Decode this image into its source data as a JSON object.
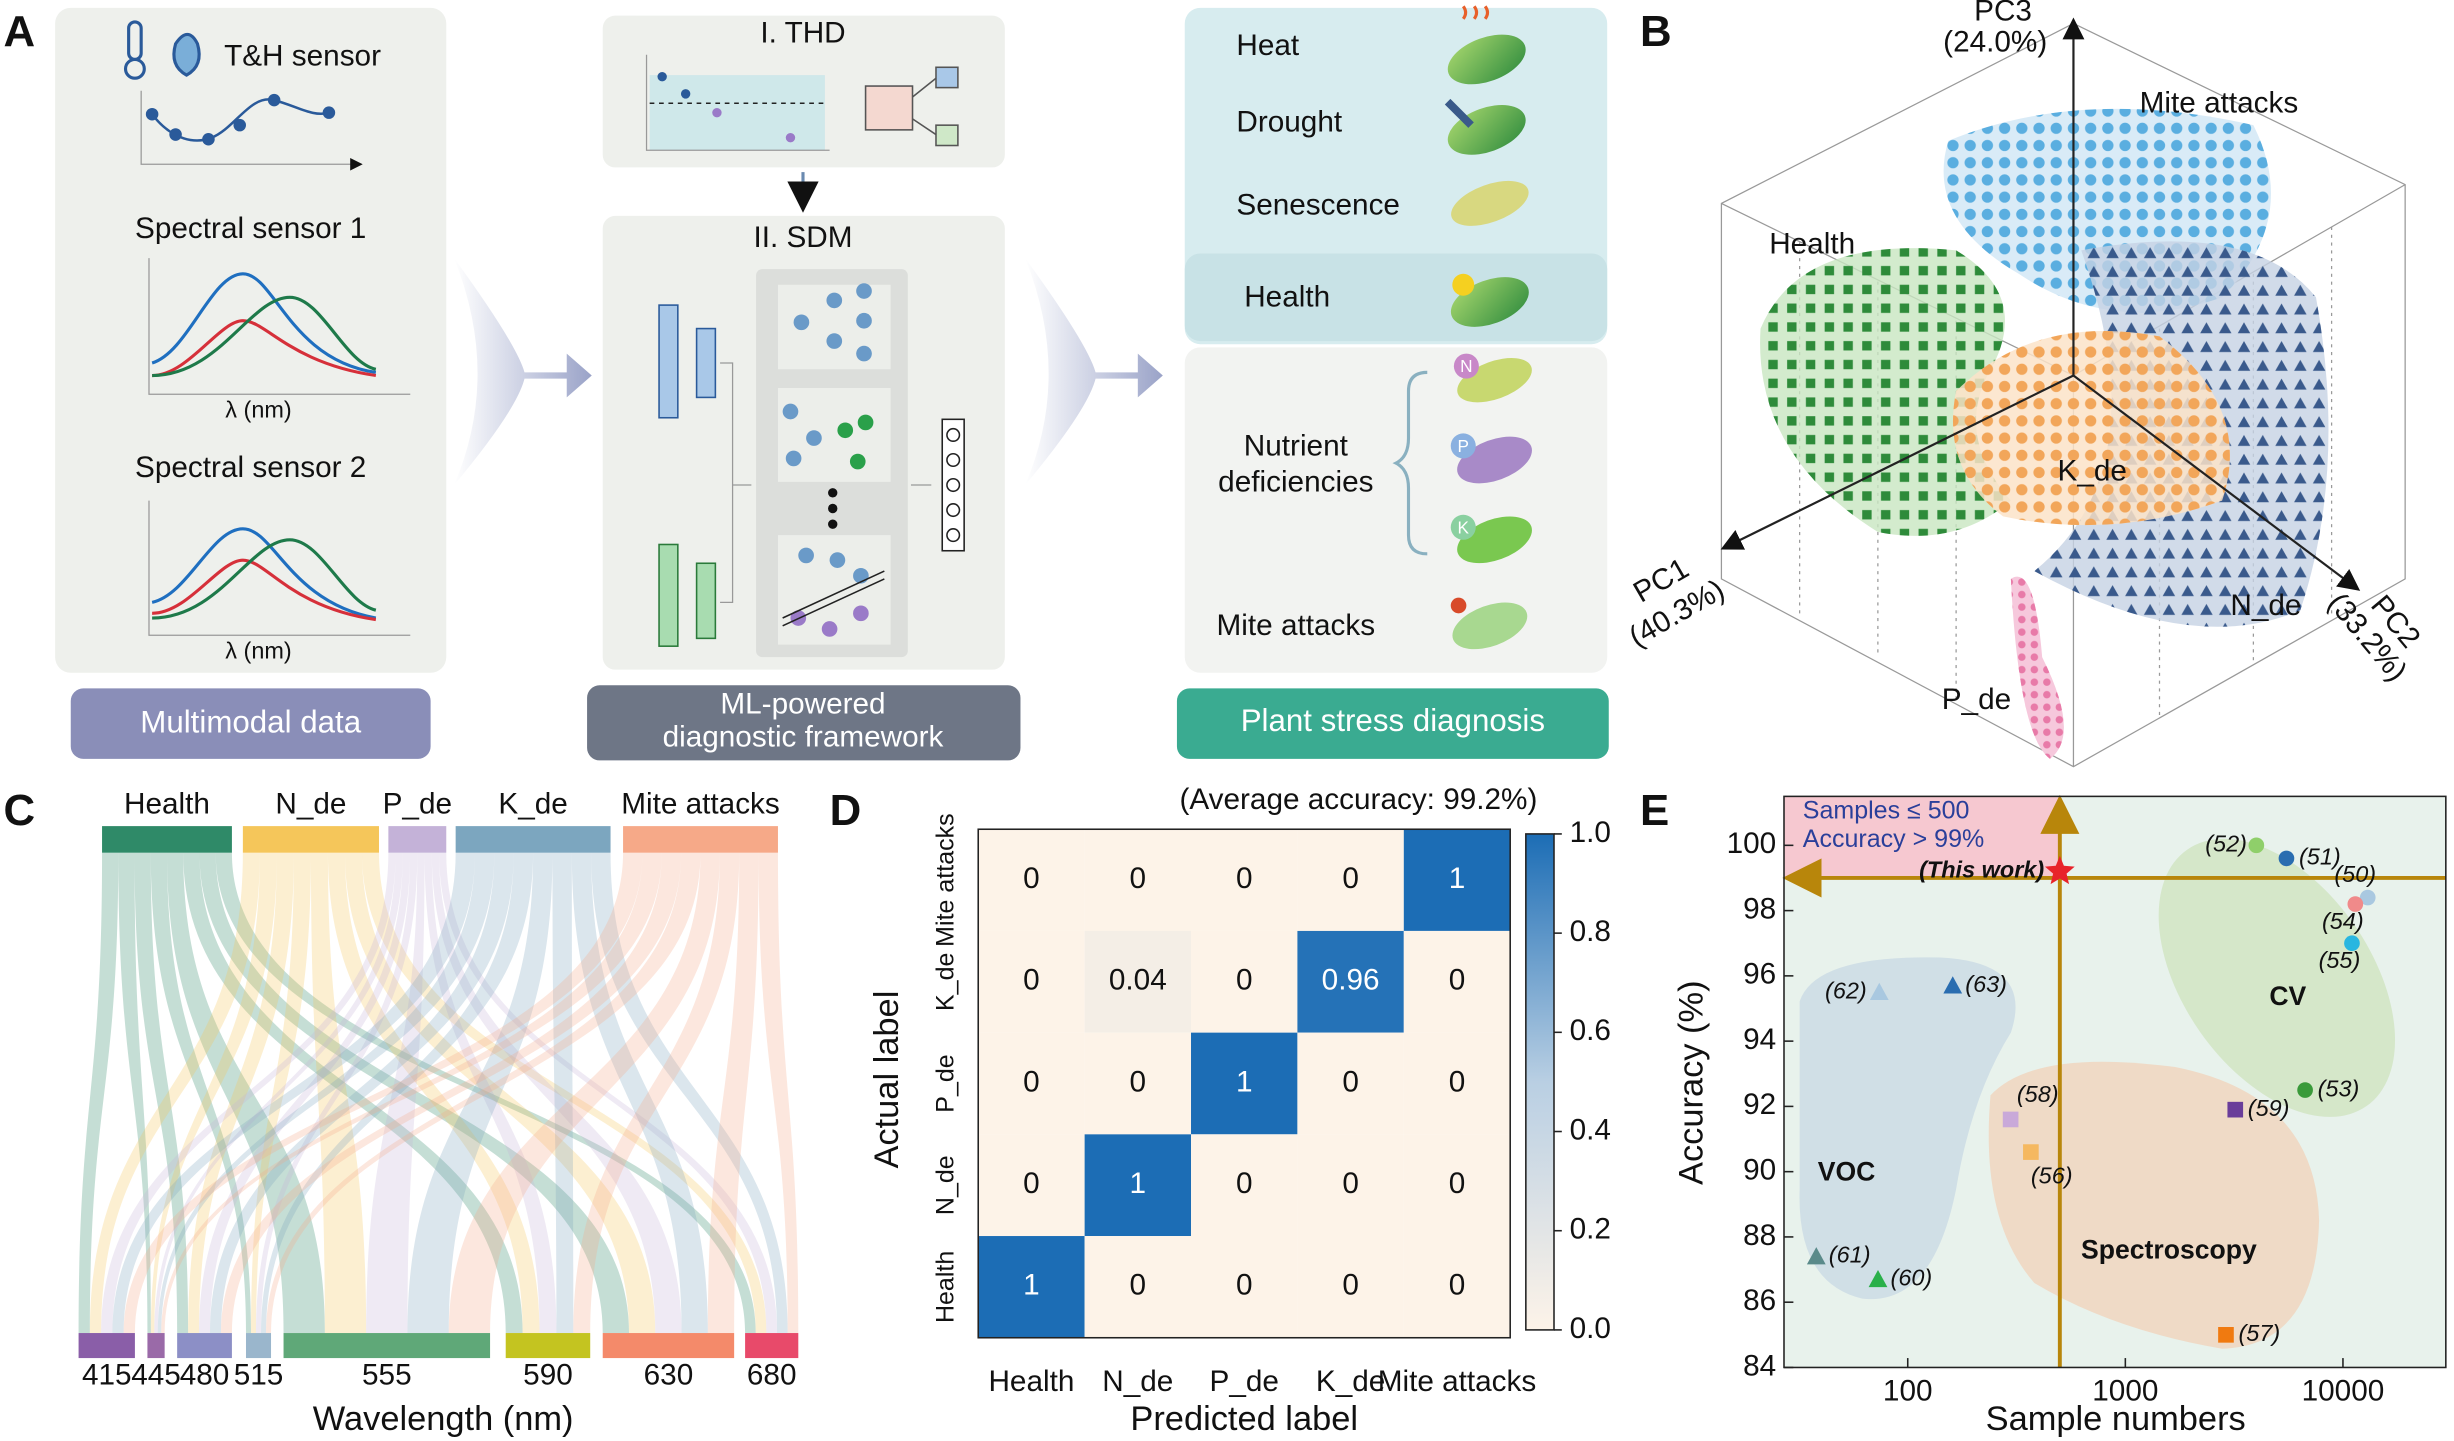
{
  "panel_labels": [
    "A",
    "B",
    "C",
    "D",
    "E"
  ],
  "panel_a": {
    "th_sensor": "T&H sensor",
    "spectral_1": "Spectral sensor 1",
    "spectral_2": "Spectral sensor 2",
    "x_label_1": "λ (nm)",
    "x_label_2": "λ (nm)",
    "input_label": "Multimodal data",
    "thd": "I. THD",
    "sdm": "II. SDM",
    "framework_label": [
      "ML-powered",
      "diagnostic framework"
    ],
    "stresses": [
      "Heat",
      "Drought",
      "Senescence",
      "Health"
    ],
    "nutrient_label": [
      "Nutrient",
      "deficiencies"
    ],
    "nutrients": [
      "N",
      "P",
      "K"
    ],
    "mite": "Mite attacks",
    "output_label": "Plant stress diagnosis"
  },
  "panel_b": {
    "axes": [
      {
        "name": "PC1",
        "share": "(40.3%)"
      },
      {
        "name": "PC2",
        "share": "(33.2%)"
      },
      {
        "name": "PC3",
        "share": "(24.0%)"
      }
    ],
    "clusters": [
      "Mite attacks",
      "Health",
      "K_de",
      "N_de",
      "P_de"
    ]
  },
  "panel_c": {
    "sources": [
      {
        "name": "Health",
        "color": "#2f8a68"
      },
      {
        "name": "N_de",
        "color": "#f5c65a"
      },
      {
        "name": "P_de",
        "color": "#c4b2d8"
      },
      {
        "name": "K_de",
        "color": "#7ca6bf"
      },
      {
        "name": "Mite attacks",
        "color": "#f6a988"
      }
    ],
    "wavelengths": [
      415,
      445,
      480,
      515,
      555,
      590,
      630,
      680
    ],
    "wavelength_colors": [
      "#8a5ea8",
      "#9a6aa8",
      "#8c8fc6",
      "#9ab6cc",
      "#5fa878",
      "#c4c420",
      "#f48a6a",
      "#e84a6a"
    ],
    "x_label": "Wavelength (nm)"
  },
  "chart_data": [
    {
      "type": "heatmap",
      "title": "(Average accuracy: 99.2%)",
      "x_label": "Predicted label",
      "y_label": "Actual label",
      "x_categories": [
        "Health",
        "N_de",
        "P_de",
        "K_de",
        "Mite attacks"
      ],
      "y_categories": [
        "Mite attacks",
        "K_de",
        "P_de",
        "N_de",
        "Health"
      ],
      "values": [
        [
          0,
          0,
          0,
          0,
          1
        ],
        [
          0,
          0.04,
          0,
          0.96,
          0
        ],
        [
          0,
          0,
          1,
          0,
          0
        ],
        [
          0,
          1,
          0,
          0,
          0
        ],
        [
          1,
          0,
          0,
          0,
          0
        ]
      ],
      "clim": [
        0,
        1
      ],
      "cticks": [
        {
          "value": 0,
          "label": "0.0"
        },
        0.2,
        0.4,
        0.6,
        0.8,
        {
          "value": 1,
          "label": "1.0"
        }
      ],
      "colors": [
        "#fdf3e8",
        "#1c6db5"
      ]
    },
    {
      "type": "scatter",
      "x_label": "Sample numbers",
      "y_label": "Accuracy (%)",
      "log_x": true,
      "xlim": [
        27,
        29700
      ],
      "ylim": [
        84,
        101.5
      ],
      "xticks": [
        100,
        1000,
        10000
      ],
      "yticks": [
        84,
        86,
        88,
        90,
        92,
        94,
        96,
        98,
        100
      ],
      "threshold_x": 500,
      "threshold_y": 99,
      "annotations": [
        "Samples ≤ 500",
        "Accuracy > 99%"
      ],
      "region_labels": [
        "CV",
        "VOC",
        "Spectroscopy"
      ],
      "points": [
        {
          "label": "(52)",
          "x": 4000,
          "y": 100,
          "color": "#8fcf6a",
          "marker": "circle"
        },
        {
          "label": "(51)",
          "x": 5500,
          "y": 99.6,
          "color": "#2a6db0",
          "marker": "circle"
        },
        {
          "label": "(50)",
          "x": 13000,
          "y": 98.4,
          "color": "#a9c8e0",
          "marker": "circle"
        },
        {
          "label": "(54)",
          "x": 11400,
          "y": 98.2,
          "color": "#f08a8a",
          "marker": "circle"
        },
        {
          "label": "(55)",
          "x": 11000,
          "y": 97,
          "color": "#29b6e0",
          "marker": "circle"
        },
        {
          "label": "(53)",
          "x": 6700,
          "y": 92.5,
          "color": "#3a9a3a",
          "marker": "circle"
        },
        {
          "label": "(59)",
          "x": 3200,
          "y": 91.9,
          "color": "#6a3d9a",
          "marker": "square"
        },
        {
          "label": "(57)",
          "x": 2900,
          "y": 85,
          "color": "#f07a10",
          "marker": "square"
        },
        {
          "label": "(58)",
          "x": 297,
          "y": 91.6,
          "color": "#c9a9d9",
          "marker": "square"
        },
        {
          "label": "(56)",
          "x": 368,
          "y": 90.6,
          "color": "#f5b860",
          "marker": "square"
        },
        {
          "label": "(62)",
          "x": 74,
          "y": 95.5,
          "color": "#a9c8e0",
          "marker": "triangle"
        },
        {
          "label": "(63)",
          "x": 161,
          "y": 95.7,
          "color": "#2a6db0",
          "marker": "triangle"
        },
        {
          "label": "(61)",
          "x": 38,
          "y": 87.4,
          "color": "#5a8a8a",
          "marker": "triangle"
        },
        {
          "label": "(60)",
          "x": 73,
          "y": 86.7,
          "color": "#2ab04a",
          "marker": "triangle"
        },
        {
          "label": "(This work)",
          "x": 500,
          "y": 99.2,
          "color": "#e8232a",
          "marker": "star"
        }
      ]
    }
  ]
}
